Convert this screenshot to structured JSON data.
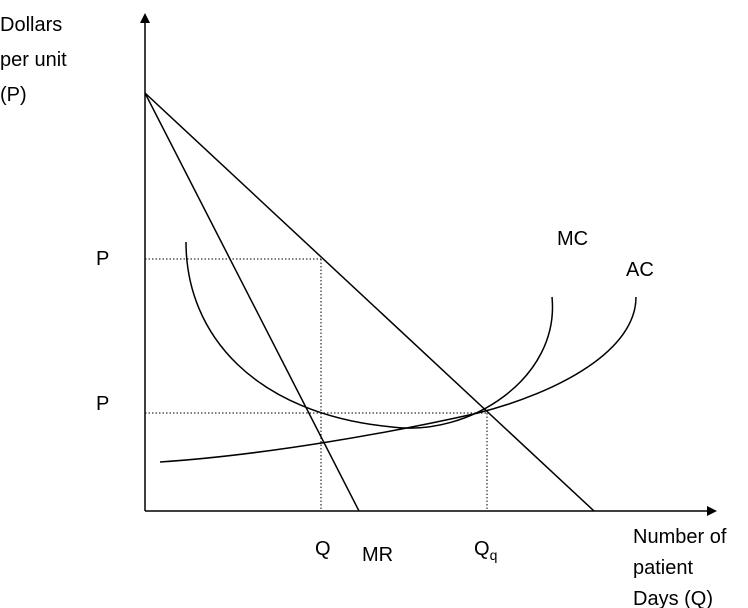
{
  "y_axis": {
    "label_lines": [
      "Dollars",
      "per unit",
      "(P)"
    ]
  },
  "x_axis": {
    "label_lines": [
      "Number of",
      "patient",
      "Days (Q)"
    ]
  },
  "curves": {
    "mc_label": "MC",
    "ac_label": "AC",
    "mr_label": "MR"
  },
  "price_labels": {
    "upper": "P",
    "lower": "P"
  },
  "quantity_labels": {
    "q": "Q",
    "qq_main": "Q",
    "qq_sub": "q"
  },
  "colors": {
    "line": "#000000",
    "background": "#ffffff"
  }
}
